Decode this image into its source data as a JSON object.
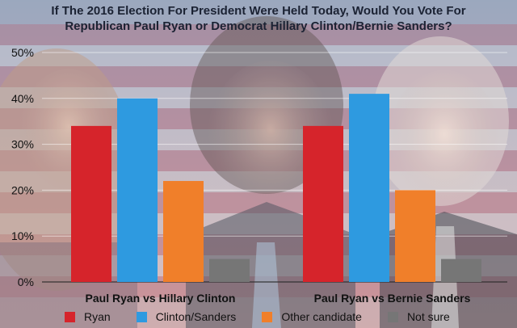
{
  "chart_data": {
    "type": "bar",
    "title_lines": [
      "If The 2016 Election For President Were Held Today, Would You Vote For",
      "Republican Paul Ryan or Democrat Hillary Clinton/Bernie Sanders?"
    ],
    "categories": [
      "Paul Ryan vs Hillary Clinton",
      "Paul Ryan vs Bernie Sanders"
    ],
    "series": [
      {
        "name": "Ryan",
        "color": "#d6242b",
        "values": [
          34,
          34
        ]
      },
      {
        "name": "Clinton/Sanders",
        "color": "#2e9ae0",
        "values": [
          40,
          41
        ]
      },
      {
        "name": "Other candidate",
        "color": "#f07f2a",
        "values": [
          22,
          20
        ]
      },
      {
        "name": "Not sure",
        "color": "#767676",
        "values": [
          5,
          5
        ]
      }
    ],
    "y_ticks": [
      "0%",
      "10%",
      "20%",
      "30%",
      "40%",
      "50%"
    ],
    "ylim": [
      0,
      50
    ],
    "ylabel": "",
    "xlabel": "",
    "grid": true,
    "legend_position": "bottom"
  }
}
